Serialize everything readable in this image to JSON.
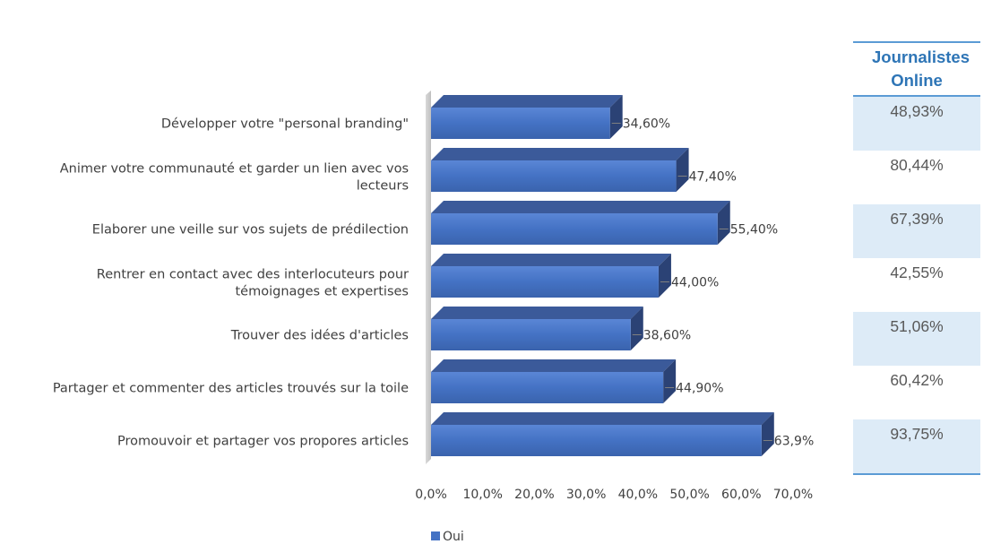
{
  "chart_data": {
    "type": "bar",
    "orientation": "horizontal",
    "style": "3d",
    "categories": [
      "Développer votre \"personal branding\"",
      "Animer votre communauté et garder un lien avec vos lecteurs",
      "Elaborer une veille sur vos sujets de prédilection",
      "Rentrer en contact avec des interlocuteurs pour témoignages et expertises",
      "Trouver des idées d'articles",
      "Partager et commenter des articles trouvés sur la toile",
      "Promouvoir et partager vos propores articles"
    ],
    "category_lines": [
      [
        "Développer votre \"personal branding\""
      ],
      [
        "Animer votre communauté et garder un lien avec vos",
        "lecteurs"
      ],
      [
        "Elaborer une veille sur vos sujets de prédilection"
      ],
      [
        "Rentrer en contact avec des interlocuteurs pour",
        "témoignages et expertises"
      ],
      [
        "Trouver des idées d'articles"
      ],
      [
        "Partager et commenter des articles trouvés sur la toile"
      ],
      [
        "Promouvoir et partager vos propores articles"
      ]
    ],
    "series": [
      {
        "name": "Oui",
        "values": [
          34.6,
          47.4,
          55.4,
          44.0,
          38.6,
          44.9,
          63.9
        ],
        "labels": [
          "34,60%",
          "47,40%",
          "55,40%",
          "44,00%",
          "38,60%",
          "44,90%",
          "63,9%"
        ]
      }
    ],
    "xlim": [
      0,
      70
    ],
    "x_ticks": [
      0,
      10,
      20,
      30,
      40,
      50,
      60,
      70
    ],
    "x_tick_labels": [
      "0,0%",
      "10,0%",
      "20,0%",
      "30,0%",
      "40,0%",
      "50,0%",
      "60,0%",
      "70,0%"
    ],
    "legend": {
      "position": "bottom",
      "entries": [
        "Oui"
      ]
    },
    "grid": false
  },
  "side_table": {
    "header": "Journalistes Online",
    "values": [
      "48,93%",
      "80,44%",
      "67,39%",
      "42,55%",
      "51,06%",
      "60,42%",
      "93,75%"
    ]
  },
  "colors": {
    "bar_front": "#4472c4",
    "bar_top": "#3b5a9a",
    "bar_side": "#2b4275",
    "header_text": "#2e75b6",
    "table_rule": "#5b9bd5",
    "table_shade": "#ddebf7"
  }
}
